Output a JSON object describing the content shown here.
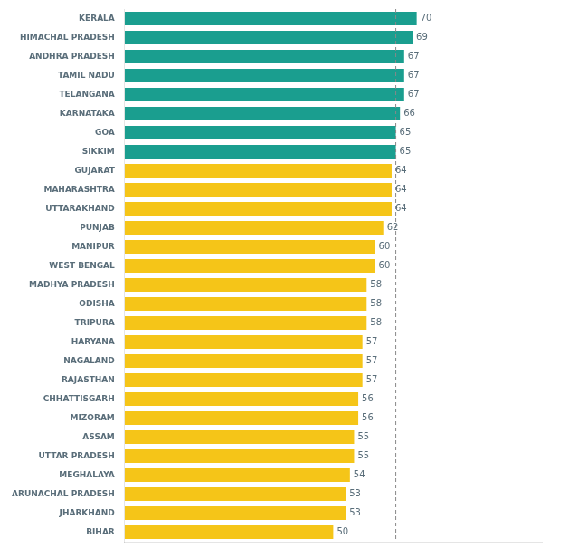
{
  "chart_data": {
    "type": "bar",
    "orientation": "horizontal",
    "categories": [
      "KERALA",
      "HIMACHAL PRADESH",
      "ANDHRA PRADESH",
      "TAMIL NADU",
      "TELANGANA",
      "KARNATAKA",
      "GOA",
      "SIKKIM",
      "GUJARAT",
      "MAHARASHTRA",
      "UTTARAKHAND",
      "PUNJAB",
      "MANIPUR",
      "WEST BENGAL",
      "MADHYA PRADESH",
      "ODISHA",
      "TRIPURA",
      "HARYANA",
      "NAGALAND",
      "RAJASTHAN",
      "CHHATTISGARH",
      "MIZORAM",
      "ASSAM",
      "UTTAR PRADESH",
      "MEGHALAYA",
      "ARUNACHAL PRADESH",
      "JHARKHAND",
      "BIHAR"
    ],
    "values": [
      70,
      69,
      67,
      67,
      67,
      66,
      65,
      65,
      64,
      64,
      64,
      62,
      60,
      60,
      58,
      58,
      58,
      57,
      57,
      57,
      56,
      56,
      55,
      55,
      54,
      53,
      53,
      50
    ],
    "colors": [
      "#1a9e8f",
      "#1a9e8f",
      "#1a9e8f",
      "#1a9e8f",
      "#1a9e8f",
      "#1a9e8f",
      "#1a9e8f",
      "#1a9e8f",
      "#f5c518",
      "#f5c518",
      "#f5c518",
      "#f5c518",
      "#f5c518",
      "#f5c518",
      "#f5c518",
      "#f5c518",
      "#f5c518",
      "#f5c518",
      "#f5c518",
      "#f5c518",
      "#f5c518",
      "#f5c518",
      "#f5c518",
      "#f5c518",
      "#f5c518",
      "#f5c518",
      "#f5c518",
      "#f5c518"
    ],
    "xlim": [
      0,
      100
    ],
    "reference_line": 65,
    "data_labels": true,
    "tick_labels": "y",
    "grid": false
  }
}
